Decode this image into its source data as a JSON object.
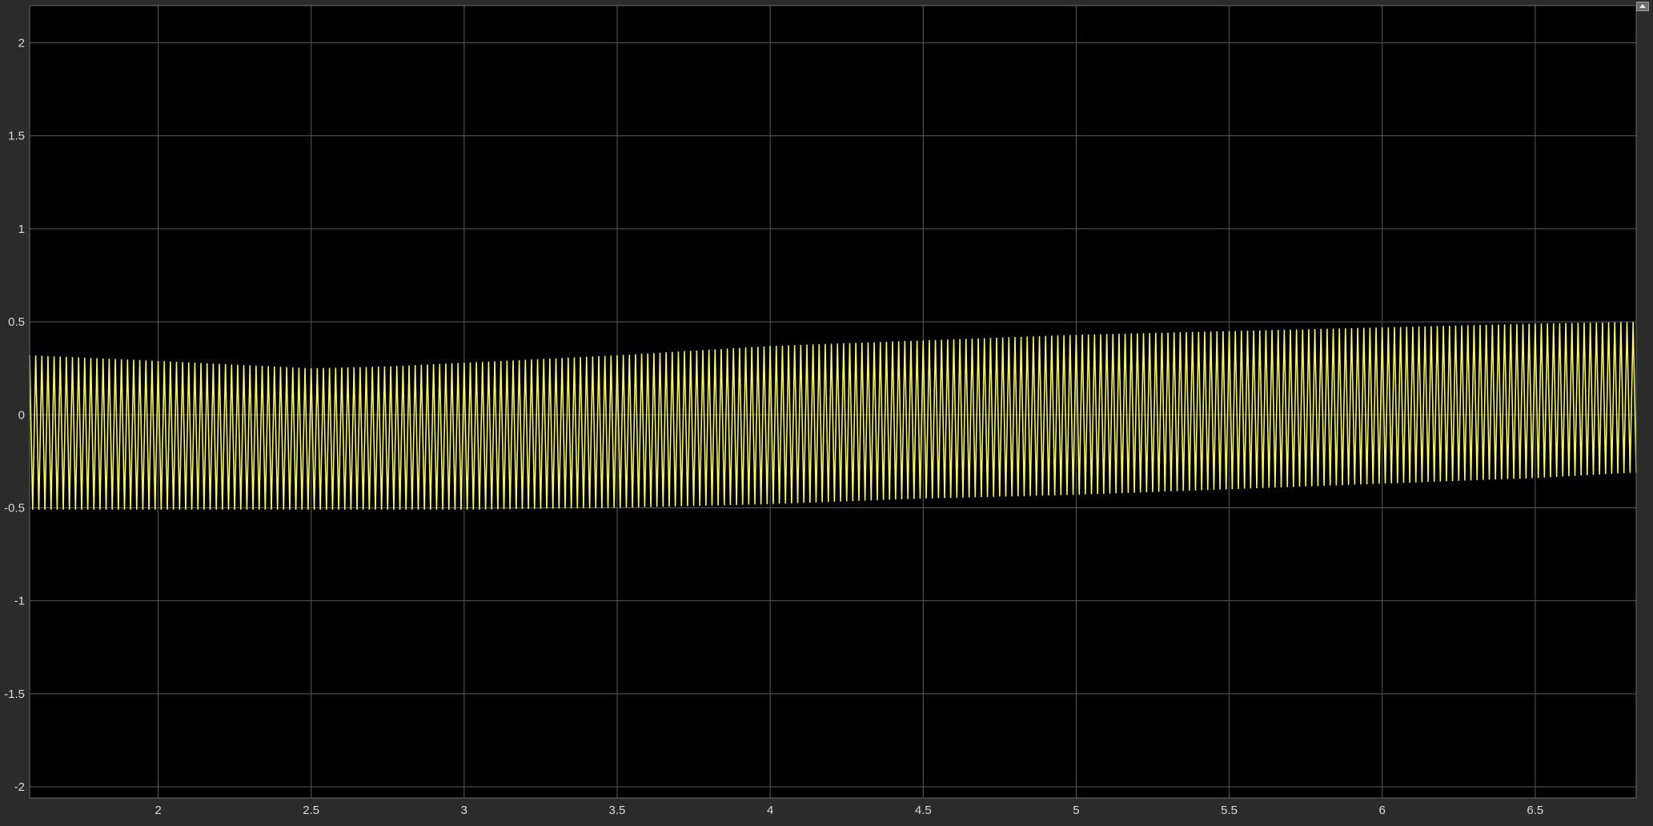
{
  "chart_data": {
    "type": "line",
    "title": "",
    "xlabel": "",
    "ylabel": "",
    "xlim": [
      1.58,
      6.83
    ],
    "ylim": [
      -2.06,
      2.2
    ],
    "x_ticks": [
      2,
      2.5,
      3,
      3.5,
      4,
      4.5,
      5,
      5.5,
      6,
      6.5
    ],
    "y_ticks": [
      2,
      1.5,
      1,
      0.5,
      0,
      -0.5,
      -1,
      -1.5,
      -2
    ],
    "grid": true,
    "background_color": "#000000",
    "axes_color": "#2b2b2b",
    "grid_color": "#5a5a5a",
    "series": [
      {
        "color": "#f2ef3a",
        "highlight_color": "#ffffff",
        "oscillation_period": 0.02,
        "upper_envelope": [
          [
            1.58,
            0.32
          ],
          [
            2.0,
            0.29
          ],
          [
            2.5,
            0.25
          ],
          [
            2.75,
            0.26
          ],
          [
            3.0,
            0.28
          ],
          [
            3.5,
            0.32
          ],
          [
            4.0,
            0.37
          ],
          [
            4.5,
            0.4
          ],
          [
            5.0,
            0.43
          ],
          [
            5.5,
            0.45
          ],
          [
            6.0,
            0.47
          ],
          [
            6.5,
            0.49
          ],
          [
            6.83,
            0.5
          ]
        ],
        "lower_envelope": [
          [
            1.58,
            -0.51
          ],
          [
            2.0,
            -0.51
          ],
          [
            2.5,
            -0.51
          ],
          [
            3.0,
            -0.51
          ],
          [
            3.5,
            -0.5
          ],
          [
            4.0,
            -0.48
          ],
          [
            4.5,
            -0.45
          ],
          [
            5.0,
            -0.43
          ],
          [
            5.5,
            -0.4
          ],
          [
            6.0,
            -0.37
          ],
          [
            6.5,
            -0.34
          ],
          [
            6.83,
            -0.31
          ]
        ]
      }
    ]
  },
  "toolbar": {
    "expand_icon": "expand-arrow-icon"
  }
}
